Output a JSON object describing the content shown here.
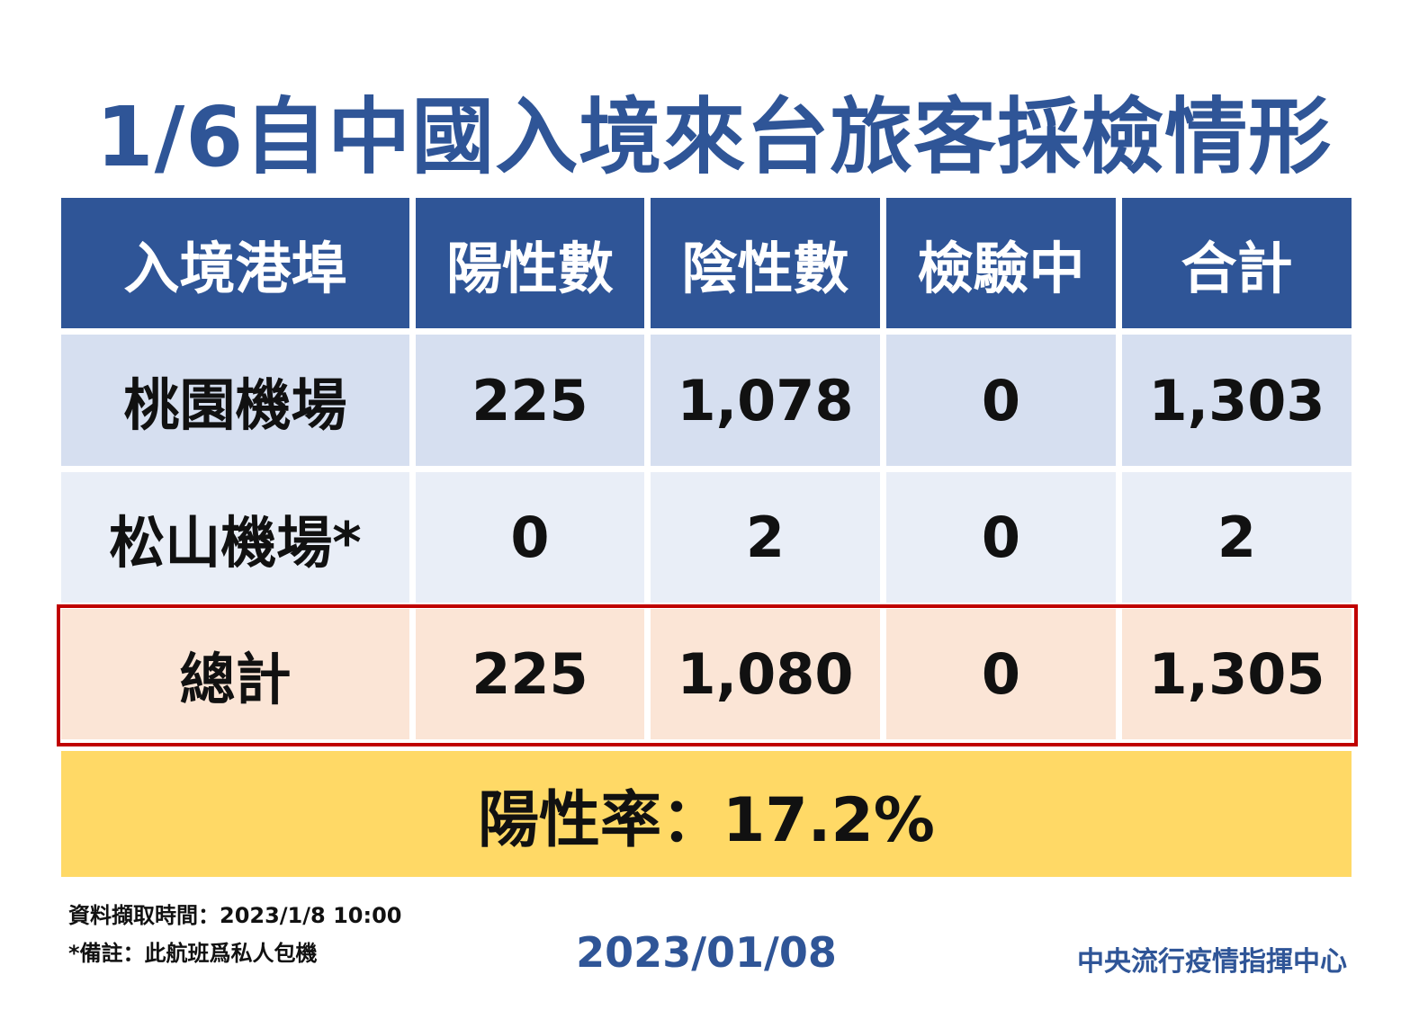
{
  "title": "1/6自中國入境來台旅客採檢情形",
  "table": {
    "header": [
      "入境港埠",
      "陽性數",
      "陰性數",
      "檢驗中",
      "合計"
    ],
    "rows": [
      [
        "桃園機場",
        "225",
        "1,078",
        "0",
        "1,303"
      ],
      [
        "松山機場*",
        "0",
        "2",
        "0",
        "2"
      ],
      [
        "總計",
        "225",
        "1,080",
        "0",
        "1,305"
      ]
    ]
  },
  "positive_rate": "陽性率：17.2%",
  "footnotes": [
    "資料擷取時間：2023/1/8 10:00",
    "*備註：此航班爲私人包機"
  ],
  "date": "2023/01/08",
  "organization": "中央流行疫情指揮中心"
}
